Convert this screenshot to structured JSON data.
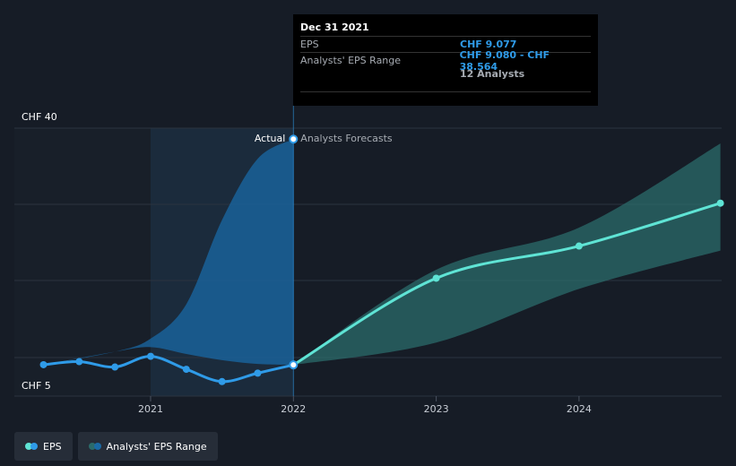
{
  "colors": {
    "background": "#161c26",
    "eps": "#2f9be8",
    "forecast": "#5fe4d5",
    "range_past": "#1a6aa6",
    "range_forecast": "#2b6b6b",
    "grid": "#2b3340"
  },
  "tooltip": {
    "date": "Dec 31 2021",
    "eps_label": "EPS",
    "eps_value": "CHF 9.077",
    "range_label": "Analysts' EPS Range",
    "range_value": "CHF 9.080 - CHF 38.564",
    "analysts": "12 Analysts"
  },
  "chart_data": {
    "type": "line",
    "x_axis": {
      "ticks": [
        "2021",
        "2022",
        "2023",
        "2024"
      ]
    },
    "y_axis": {
      "ticks": [
        "CHF 40",
        "CHF 5"
      ],
      "ylim": [
        5,
        40
      ],
      "tick_values": [
        40,
        5
      ],
      "grid": true
    },
    "annotations": {
      "actual": "Actual",
      "forecast": "Analysts Forecasts"
    },
    "series": [
      {
        "name": "EPS",
        "points": [
          {
            "x": 2020.25,
            "y": 9.1
          },
          {
            "x": 2020.5,
            "y": 9.5
          },
          {
            "x": 2020.75,
            "y": 8.8
          },
          {
            "x": 2021.0,
            "y": 10.2
          },
          {
            "x": 2021.25,
            "y": 8.5
          },
          {
            "x": 2021.5,
            "y": 6.9
          },
          {
            "x": 2021.75,
            "y": 8.0
          },
          {
            "x": 2022.0,
            "y": 9.077
          }
        ]
      },
      {
        "name": "Analysts' EPS Forecast",
        "points": [
          {
            "x": 2022.0,
            "y": 9.077
          },
          {
            "x": 2023.0,
            "y": 20.4
          },
          {
            "x": 2024.0,
            "y": 24.6
          },
          {
            "x": 2024.99,
            "y": 30.2
          }
        ]
      }
    ],
    "range_past": [
      {
        "x": 2020.25,
        "low": 9.1,
        "high": 9.1
      },
      {
        "x": 2020.75,
        "low": 10.8,
        "high": 10.8
      },
      {
        "x": 2021.0,
        "low": 11.4,
        "high": 12.5
      },
      {
        "x": 2021.25,
        "low": 10.5,
        "high": 17.0
      },
      {
        "x": 2021.5,
        "low": 9.7,
        "high": 28.0
      },
      {
        "x": 2021.75,
        "low": 9.2,
        "high": 36.0
      },
      {
        "x": 2022.0,
        "low": 9.08,
        "high": 38.564
      }
    ],
    "range_forecast": [
      {
        "x": 2022.0,
        "low": 9.077,
        "high": 9.077
      },
      {
        "x": 2023.0,
        "low": 12.0,
        "high": 21.5
      },
      {
        "x": 2024.0,
        "low": 19.0,
        "high": 27.0
      },
      {
        "x": 2024.99,
        "low": 24.0,
        "high": 38.0
      }
    ]
  },
  "legend": {
    "eps": "EPS",
    "range": "Analysts' EPS Range"
  }
}
